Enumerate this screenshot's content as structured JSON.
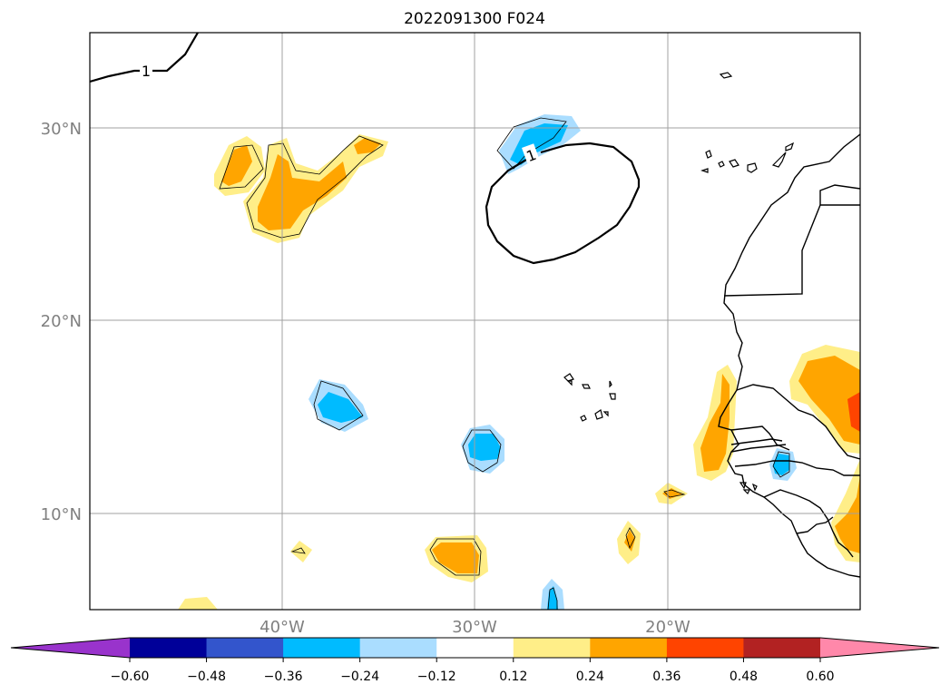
{
  "title": "2022091300 F024",
  "map": {
    "lat_labels": [
      "30°N",
      "20°N",
      "10°N"
    ],
    "lon_labels": [
      "40°W",
      "30°W",
      "20°W"
    ],
    "contour_labels": [
      "1",
      "1"
    ],
    "gridlines": true
  },
  "colorbar": {
    "extend": "both",
    "ticks": [
      "−0.60",
      "−0.48",
      "−0.36",
      "−0.24",
      "−0.12",
      "0.12",
      "0.24",
      "0.36",
      "0.48",
      "0.60"
    ],
    "colors": {
      "under": "#9933cc",
      "levels": [
        "#000099",
        "#3355cc",
        "#00bbff",
        "#aaddff",
        "#ffffff",
        "#ffee88",
        "#ffa500",
        "#ff4400",
        "#b22222"
      ],
      "over": "#ff88aa"
    }
  },
  "shading_colors": {
    "pos_light": "#ffee88",
    "pos_mid": "#ffa500",
    "pos_strong": "#ff4400",
    "neg_light": "#aaddff",
    "neg_mid": "#00bbff"
  }
}
